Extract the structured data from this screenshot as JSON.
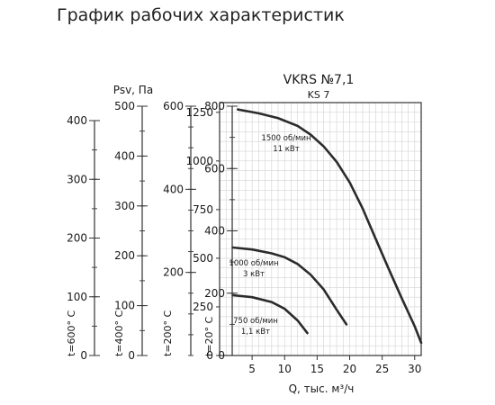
{
  "page": {
    "heading": "График рабочих характеристик"
  },
  "chart_data": {
    "type": "line",
    "title": "VKRS №7,1",
    "subtitle": "KS 7",
    "xlabel": "Q, тыс. м³/ч",
    "ylabel": "",
    "xlim": [
      0,
      31
    ],
    "ylim": [
      0,
      1300
    ],
    "xticks": [
      5,
      10,
      15,
      20,
      25,
      30
    ],
    "yticks": [
      0,
      250,
      500,
      750,
      1000,
      1250
    ],
    "grid": true,
    "series": [
      {
        "name": "1500 об/мин",
        "sub": "11 кВт",
        "x": [
          2.8,
          6,
          9,
          12,
          14,
          16,
          18,
          20,
          22,
          24,
          26,
          28,
          30,
          31
        ],
        "y": [
          1265,
          1245,
          1220,
          1180,
          1135,
          1075,
          995,
          890,
          755,
          600,
          445,
          295,
          150,
          65
        ]
      },
      {
        "name": "1000 об/мин",
        "sub": "3 кВт",
        "x": [
          2,
          5,
          8,
          10,
          12,
          14,
          16,
          18,
          19.5
        ],
        "y": [
          555,
          545,
          525,
          505,
          470,
          415,
          340,
          235,
          160
        ]
      },
      {
        "name": "750 об/мин",
        "sub": "1,1 кВт",
        "x": [
          2,
          5,
          8,
          10,
          12,
          13.5
        ],
        "y": [
          310,
          300,
          275,
          240,
          180,
          115
        ]
      }
    ],
    "side_axes": {
      "title": "Psv, Па",
      "axes": [
        {
          "label": "t=600° C",
          "max": 400,
          "ticks": [
            0,
            100,
            200,
            300,
            400
          ]
        },
        {
          "label": "t=400° C",
          "max": 500,
          "ticks": [
            0,
            100,
            200,
            300,
            400,
            500
          ]
        },
        {
          "label": "t=200° C",
          "max": 600,
          "ticks": [
            200,
            400,
            600
          ]
        },
        {
          "label": "t=20° C",
          "max": 800,
          "ticks": [
            0,
            200,
            400,
            600,
            800
          ]
        }
      ]
    }
  }
}
